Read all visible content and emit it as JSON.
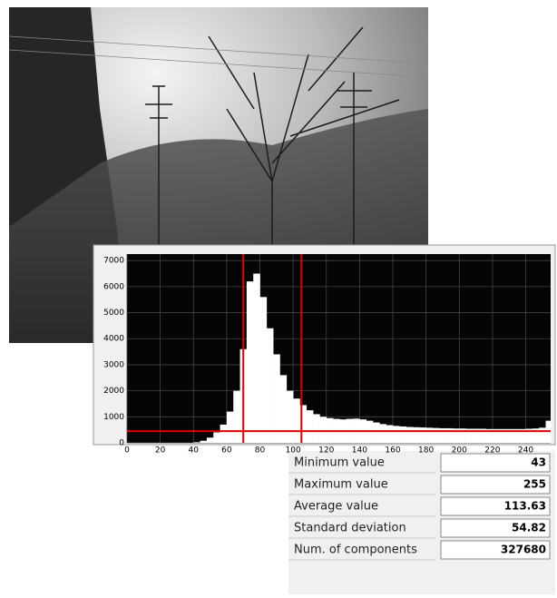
{
  "chart_data": {
    "type": "histogram",
    "bins": [
      40,
      44,
      48,
      52,
      56,
      60,
      64,
      68,
      72,
      76,
      80,
      84,
      88,
      92,
      96,
      100,
      104,
      108,
      112,
      116,
      120,
      124,
      128,
      132,
      136,
      140,
      144,
      148,
      152,
      156,
      160,
      164,
      168,
      172,
      176,
      180,
      184,
      188,
      192,
      196,
      200,
      204,
      208,
      212,
      216,
      220,
      224,
      228,
      232,
      236,
      240,
      244,
      248,
      252,
      256
    ],
    "values": [
      20,
      80,
      200,
      400,
      700,
      1200,
      2000,
      3600,
      6200,
      6500,
      5600,
      4400,
      3400,
      2600,
      2000,
      1700,
      1450,
      1250,
      1100,
      1000,
      950,
      920,
      900,
      920,
      930,
      900,
      850,
      780,
      720,
      680,
      650,
      630,
      610,
      600,
      590,
      580,
      570,
      560,
      560,
      550,
      550,
      540,
      540,
      540,
      530,
      530,
      530,
      530,
      530,
      530,
      540,
      550,
      580,
      850
    ],
    "color": "#ffffff",
    "xlim": [
      0,
      255
    ],
    "ylim": [
      0,
      7250
    ],
    "xticks": [
      0,
      20,
      40,
      60,
      80,
      100,
      120,
      140,
      160,
      180,
      200,
      220,
      240
    ],
    "yticks": [
      0,
      1000,
      2000,
      3000,
      4000,
      5000,
      6000,
      7000
    ],
    "grid": true,
    "cursors": {
      "x": [
        70,
        105
      ],
      "y": 450,
      "color": "#e00000"
    }
  },
  "stats": [
    {
      "label": "Minimum value",
      "value": 43
    },
    {
      "label": "Maximum value",
      "value": 255
    },
    {
      "label": "Average value",
      "value": 113.63
    },
    {
      "label": "Standard deviation",
      "value": 54.82
    },
    {
      "label": "Num. of components",
      "value": 327680
    }
  ]
}
